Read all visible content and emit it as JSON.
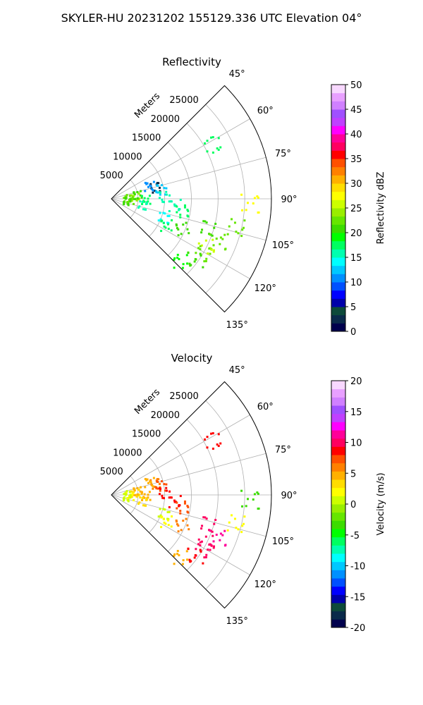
{
  "suptitle": "SKYLER-HU  20231202  155129.336 UTC Elevation 04°",
  "chart_data": [
    {
      "type": "polar-sector",
      "title": "Reflectivity",
      "theta_range_deg": [
        45,
        135
      ],
      "theta_ticks": [
        "45°",
        "60°",
        "75°",
        "90°",
        "105°",
        "120°",
        "135°"
      ],
      "r_label": "Meters",
      "r_ticks": [
        5000,
        10000,
        15000,
        20000,
        25000
      ],
      "r_max": 30000,
      "grid": true,
      "colorbar": {
        "label": "Reflectivity dBZ",
        "range": [
          0,
          50
        ],
        "ticks": [
          0,
          5,
          10,
          15,
          20,
          25,
          30,
          35,
          40,
          45,
          50
        ],
        "colors": [
          "#00004d",
          "#0a2a4a",
          "#0d4a3a",
          "#0000aa",
          "#0000ff",
          "#0050ff",
          "#0090ff",
          "#00c8ff",
          "#00ffff",
          "#00ffb0",
          "#00ff60",
          "#00ff00",
          "#3cdc00",
          "#66e600",
          "#99ee00",
          "#ccff00",
          "#ffff00",
          "#ffdd00",
          "#ffb000",
          "#ff8000",
          "#ff5000",
          "#ff0000",
          "#ff0060",
          "#ff0099",
          "#ff00ff",
          "#c040ff",
          "#a050ff",
          "#d080ff",
          "#e8a0ff",
          "#f8d8ff"
        ]
      },
      "echoes": [
        {
          "theta": 89,
          "r": 3000,
          "value": 22
        },
        {
          "theta": 86,
          "r": 4500,
          "value": 24
        },
        {
          "theta": 95,
          "r": 3500,
          "value": 22
        },
        {
          "theta": 100,
          "r": 3000,
          "value": 20
        },
        {
          "theta": 82,
          "r": 5000,
          "value": 20
        },
        {
          "theta": 92,
          "r": 6500,
          "value": 18
        },
        {
          "theta": 102,
          "r": 6000,
          "value": 15
        },
        {
          "theta": 76,
          "r": 8500,
          "value": 2
        },
        {
          "theta": 72,
          "r": 7500,
          "value": 10
        },
        {
          "theta": 80,
          "r": 9500,
          "value": 12
        },
        {
          "theta": 88,
          "r": 10000,
          "value": 16
        },
        {
          "theta": 96,
          "r": 12000,
          "value": 15
        },
        {
          "theta": 100,
          "r": 13500,
          "value": 17
        },
        {
          "theta": 110,
          "r": 10500,
          "value": 14
        },
        {
          "theta": 116,
          "r": 11500,
          "value": 18
        },
        {
          "theta": 113,
          "r": 14500,
          "value": 20
        },
        {
          "theta": 107,
          "r": 19000,
          "value": 21
        },
        {
          "theta": 112,
          "r": 21500,
          "value": 23
        },
        {
          "theta": 117,
          "r": 20000,
          "value": 25
        },
        {
          "theta": 121,
          "r": 20000,
          "value": 22
        },
        {
          "theta": 126,
          "r": 19500,
          "value": 21
        },
        {
          "theta": 132,
          "r": 17500,
          "value": 19
        },
        {
          "theta": 62,
          "r": 21500,
          "value": 18
        },
        {
          "theta": 92,
          "r": 26000,
          "value": 27
        },
        {
          "theta": 103,
          "r": 24000,
          "value": 23
        }
      ]
    },
    {
      "type": "polar-sector",
      "title": "Velocity",
      "theta_range_deg": [
        45,
        135
      ],
      "theta_ticks": [
        "45°",
        "60°",
        "75°",
        "90°",
        "105°",
        "120°",
        "135°"
      ],
      "r_label": "Meters",
      "r_ticks": [
        5000,
        10000,
        15000,
        20000,
        25000
      ],
      "r_max": 30000,
      "grid": true,
      "colorbar": {
        "label": "Velocity (m/s)",
        "range": [
          -20,
          20
        ],
        "ticks": [
          -20,
          -15,
          -10,
          -5,
          0,
          5,
          10,
          15,
          20
        ],
        "colors": [
          "#00004d",
          "#0a2a4a",
          "#0d4a3a",
          "#0000aa",
          "#0000ff",
          "#0050ff",
          "#0090ff",
          "#00c8ff",
          "#00ffff",
          "#00ffb0",
          "#00ff60",
          "#00ff00",
          "#3cdc00",
          "#66e600",
          "#99ee00",
          "#ccff00",
          "#ffff00",
          "#ffdd00",
          "#ffb000",
          "#ff8000",
          "#ff5000",
          "#ff0000",
          "#ff0060",
          "#ff0099",
          "#ff00ff",
          "#c040ff",
          "#a050ff",
          "#d080ff",
          "#e8a0ff",
          "#f8d8ff"
        ]
      },
      "echoes": [
        {
          "theta": 89,
          "r": 3000,
          "value": 1
        },
        {
          "theta": 86,
          "r": 4500,
          "value": 3
        },
        {
          "theta": 95,
          "r": 3500,
          "value": 2
        },
        {
          "theta": 100,
          "r": 3000,
          "value": 0
        },
        {
          "theta": 82,
          "r": 5000,
          "value": 4
        },
        {
          "theta": 92,
          "r": 6500,
          "value": 5
        },
        {
          "theta": 102,
          "r": 6000,
          "value": 3
        },
        {
          "theta": 76,
          "r": 8500,
          "value": 6
        },
        {
          "theta": 72,
          "r": 7500,
          "value": 5
        },
        {
          "theta": 80,
          "r": 9500,
          "value": 7
        },
        {
          "theta": 88,
          "r": 10000,
          "value": 9
        },
        {
          "theta": 96,
          "r": 12000,
          "value": 8
        },
        {
          "theta": 100,
          "r": 13500,
          "value": 7
        },
        {
          "theta": 110,
          "r": 10500,
          "value": 1
        },
        {
          "theta": 116,
          "r": 11500,
          "value": 2
        },
        {
          "theta": 113,
          "r": 14500,
          "value": 6
        },
        {
          "theta": 107,
          "r": 19000,
          "value": 10
        },
        {
          "theta": 112,
          "r": 21500,
          "value": 11
        },
        {
          "theta": 117,
          "r": 20000,
          "value": 10
        },
        {
          "theta": 121,
          "r": 20000,
          "value": 10
        },
        {
          "theta": 126,
          "r": 19500,
          "value": 8
        },
        {
          "theta": 132,
          "r": 17500,
          "value": 5
        },
        {
          "theta": 62,
          "r": 21500,
          "value": 9
        },
        {
          "theta": 92,
          "r": 26000,
          "value": -3
        },
        {
          "theta": 103,
          "r": 24000,
          "value": 2
        }
      ]
    }
  ]
}
